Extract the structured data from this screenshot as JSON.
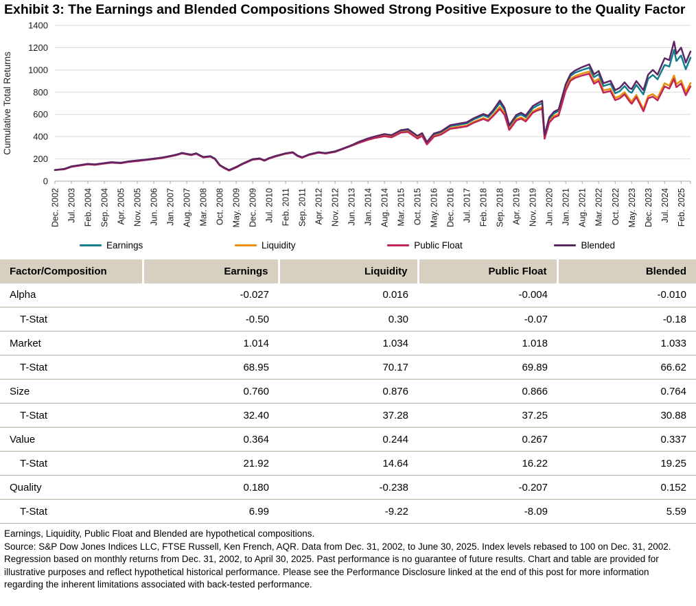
{
  "title": "Exhibit 3: The Earnings and Blended Compositions Showed Strong Positive Exposure to the Quality Factor",
  "colors": {
    "earnings": "#147D8B",
    "liquidity": "#E8900A",
    "public_float": "#C02558",
    "blended": "#5B2663",
    "header_bg": "#D7CFC0",
    "row_line": "#B3AA9B",
    "gridline": "#D9D9D9",
    "axis": "#A6A6A6"
  },
  "chart_data": {
    "type": "line",
    "title": "",
    "xlabel": "",
    "ylabel": "Cumulative Total Returns",
    "ylim": [
      0,
      1400
    ],
    "y_ticks": [
      0,
      200,
      400,
      600,
      800,
      1000,
      1200,
      1400
    ],
    "grid": "horizontal",
    "legend_position": "bottom",
    "x_tick_labels": [
      "Dec. 2002",
      "Jul. 2003",
      "Feb. 2004",
      "Sep. 2004",
      "Apr. 2005",
      "Nov. 2005",
      "Jun. 2006",
      "Jan. 2007",
      "Aug. 2007",
      "Mar. 2008",
      "Oct. 2008",
      "May. 2009",
      "Dec. 2009",
      "Jul. 2010",
      "Feb. 2011",
      "Sep. 2011",
      "Apr. 2012",
      "Nov. 2012",
      "Jun. 2013",
      "Jan. 2014",
      "Aug. 2014",
      "Mar. 2015",
      "Oct. 2015",
      "May. 2016",
      "Dec. 2016",
      "Jul. 2017",
      "Feb. 2018",
      "Sep. 2018",
      "Apr. 2019",
      "Nov. 2019",
      "Jun. 2020",
      "Jan. 2021",
      "Aug. 2021",
      "Mar. 2022",
      "Oct. 2022",
      "May. 2023",
      "Dec. 2023",
      "Jul. 2024",
      "Feb. 2025"
    ],
    "x_tick_month_step": 7,
    "x_domain_months": [
      0,
      270
    ],
    "x_start_label": "Dec. 2002",
    "x_end_label": "Jun. 2025",
    "x": [
      0,
      4,
      7,
      10,
      14,
      17,
      21,
      24,
      28,
      31,
      35,
      38,
      42,
      45,
      49,
      52,
      54,
      56,
      58,
      60,
      63,
      66,
      68,
      70,
      72,
      74,
      77,
      80,
      84,
      87,
      89,
      91,
      94,
      98,
      101,
      103,
      105,
      108,
      112,
      115,
      119,
      122,
      126,
      129,
      133,
      136,
      140,
      143,
      147,
      150,
      154,
      156,
      158,
      161,
      164,
      168,
      171,
      175,
      178,
      182,
      184,
      186,
      189,
      191,
      193,
      196,
      198,
      200,
      203,
      205,
      207,
      208,
      210,
      212,
      214,
      217,
      219,
      221,
      224,
      227,
      229,
      231,
      233,
      236,
      238,
      240,
      242,
      244,
      245,
      247,
      250,
      252,
      254,
      256,
      259,
      261,
      263,
      264,
      266,
      268,
      270
    ],
    "series": [
      {
        "name": "Earnings",
        "color": "#147D8B",
        "values": [
          100,
          108,
          130,
          140,
          153,
          148,
          160,
          168,
          163,
          174,
          183,
          190,
          200,
          208,
          224,
          238,
          252,
          243,
          236,
          248,
          215,
          222,
          200,
          143,
          118,
          97,
          125,
          158,
          195,
          202,
          185,
          205,
          225,
          248,
          258,
          228,
          212,
          238,
          258,
          250,
          265,
          288,
          320,
          350,
          380,
          398,
          418,
          408,
          452,
          460,
          400,
          425,
          345,
          420,
          440,
          495,
          505,
          520,
          556,
          592,
          575,
          620,
          702,
          640,
          490,
          580,
          600,
          575,
          655,
          680,
          700,
          405,
          560,
          610,
          630,
          855,
          945,
          975,
          1000,
          1020,
          935,
          960,
          855,
          875,
          790,
          810,
          855,
          805,
          795,
          865,
          780,
          920,
          955,
          915,
          1045,
          1030,
          1180,
          1080,
          1130,
          1005,
          1110
        ]
      },
      {
        "name": "Liquidity",
        "color": "#E8900A",
        "values": [
          100,
          110,
          132,
          142,
          155,
          150,
          162,
          170,
          165,
          176,
          185,
          192,
          202,
          210,
          226,
          240,
          254,
          245,
          238,
          250,
          217,
          224,
          202,
          145,
          120,
          99,
          127,
          160,
          197,
          204,
          187,
          207,
          227,
          250,
          260,
          230,
          214,
          240,
          260,
          252,
          267,
          290,
          322,
          345,
          374,
          391,
          408,
          398,
          440,
          447,
          388,
          412,
          334,
          406,
          425,
          478,
          487,
          500,
          534,
          567,
          550,
          592,
          668,
          610,
          470,
          557,
          574,
          550,
          628,
          650,
          666,
          390,
          538,
          586,
          604,
          830,
          918,
          945,
          968,
          985,
          895,
          920,
          815,
          830,
          748,
          765,
          800,
          740,
          715,
          775,
          648,
          765,
          782,
          748,
          880,
          858,
          950,
          872,
          905,
          800,
          882
        ]
      },
      {
        "name": "Public Float",
        "color": "#C02558",
        "values": [
          100,
          106,
          128,
          138,
          151,
          146,
          158,
          166,
          161,
          172,
          181,
          188,
          198,
          206,
          222,
          236,
          250,
          241,
          234,
          246,
          213,
          220,
          198,
          141,
          116,
          95,
          123,
          156,
          193,
          200,
          183,
          203,
          223,
          246,
          256,
          226,
          210,
          236,
          256,
          248,
          263,
          286,
          318,
          343,
          371,
          388,
          404,
          394,
          436,
          442,
          383,
          407,
          330,
          400,
          419,
          471,
          480,
          493,
          526,
          558,
          541,
          582,
          650,
          595,
          460,
          545,
          561,
          537,
          615,
          636,
          650,
          382,
          526,
          573,
          590,
          815,
          902,
          928,
          950,
          965,
          875,
          900,
          795,
          810,
          728,
          745,
          780,
          720,
          695,
          755,
          628,
          745,
          760,
          726,
          852,
          832,
          920,
          845,
          878,
          772,
          852
        ]
      },
      {
        "name": "Blended",
        "color": "#5B2663",
        "values": [
          100,
          111,
          133,
          143,
          156,
          151,
          163,
          171,
          166,
          177,
          186,
          193,
          203,
          211,
          227,
          241,
          255,
          246,
          239,
          251,
          218,
          225,
          203,
          146,
          121,
          100,
          128,
          161,
          198,
          205,
          188,
          208,
          228,
          251,
          261,
          231,
          215,
          241,
          261,
          253,
          268,
          291,
          323,
          353,
          384,
          403,
          424,
          414,
          459,
          468,
          407,
          432,
          352,
          428,
          448,
          504,
          515,
          530,
          567,
          604,
          587,
          633,
          725,
          658,
          502,
          595,
          615,
          590,
          675,
          700,
          722,
          415,
          573,
          624,
          645,
          872,
          962,
          995,
          1025,
          1050,
          960,
          990,
          880,
          902,
          818,
          840,
          888,
          838,
          828,
          900,
          818,
          958,
          1000,
          958,
          1105,
          1088,
          1255,
          1145,
          1200,
          1065,
          1165
        ]
      }
    ]
  },
  "table": {
    "columns": [
      "Factor/Composition",
      "Earnings",
      "Liquidity",
      "Public Float",
      "Blended"
    ],
    "rows": [
      {
        "label": "Alpha",
        "indent": false,
        "values": [
          "-0.027",
          "0.016",
          "-0.004",
          "-0.010"
        ]
      },
      {
        "label": "T-Stat",
        "indent": true,
        "values": [
          "-0.50",
          "0.30",
          "-0.07",
          "-0.18"
        ]
      },
      {
        "label": "Market",
        "indent": false,
        "values": [
          "1.014",
          "1.034",
          "1.018",
          "1.033"
        ]
      },
      {
        "label": "T-Stat",
        "indent": true,
        "values": [
          "68.95",
          "70.17",
          "69.89",
          "66.62"
        ]
      },
      {
        "label": "Size",
        "indent": false,
        "values": [
          "0.760",
          "0.876",
          "0.866",
          "0.764"
        ]
      },
      {
        "label": "T-Stat",
        "indent": true,
        "values": [
          "32.40",
          "37.28",
          "37.25",
          "30.88"
        ]
      },
      {
        "label": "Value",
        "indent": false,
        "values": [
          "0.364",
          "0.244",
          "0.267",
          "0.337"
        ]
      },
      {
        "label": "T-Stat",
        "indent": true,
        "values": [
          "21.92",
          "14.64",
          "16.22",
          "19.25"
        ]
      },
      {
        "label": "Quality",
        "indent": false,
        "values": [
          "0.180",
          "-0.238",
          "-0.207",
          "0.152"
        ]
      },
      {
        "label": "T-Stat",
        "indent": true,
        "values": [
          "6.99",
          "-9.22",
          "-8.09",
          "5.59"
        ]
      }
    ]
  },
  "footnotes": [
    "Earnings, Liquidity, Public Float and Blended are hypothetical compositions.",
    "Source: S&P Dow Jones Indices LLC, FTSE Russell, Ken French, AQR. Data from Dec. 31, 2002, to June 30, 2025. Index levels rebased to 100 on Dec. 31, 2002. Regression based on monthly returns from Dec. 31, 2002, to April 30, 2025. Past performance is no guarantee of future results. Chart and table are provided for illustrative purposes and reflect hypothetical historical performance. Please see the Performance Disclosure linked at the end of this post for more information regarding the inherent limitations associated with back-tested performance."
  ]
}
